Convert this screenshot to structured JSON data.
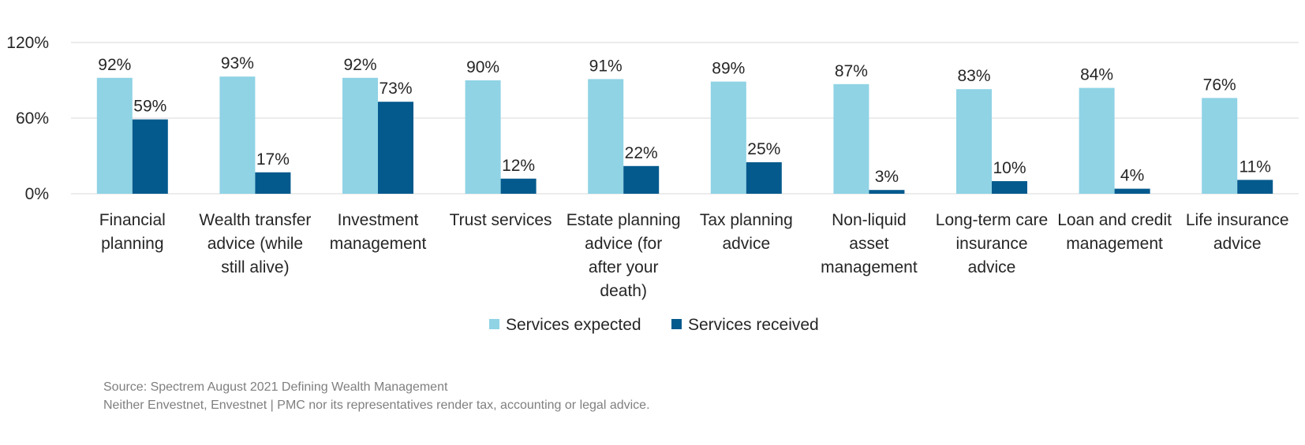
{
  "chart_data": {
    "type": "bar",
    "categories": [
      [
        "Financial",
        "planning"
      ],
      [
        "Wealth transfer",
        "advice (while",
        "still alive)"
      ],
      [
        "Investment",
        "management"
      ],
      [
        "Trust services"
      ],
      [
        "Estate planning",
        "advice (for",
        "after your",
        "death)"
      ],
      [
        "Tax planning",
        "advice"
      ],
      [
        "Non-liquid",
        "asset",
        "management"
      ],
      [
        "Long-term care",
        "insurance",
        "advice"
      ],
      [
        "Loan and credit",
        "management"
      ],
      [
        "Life insurance",
        "advice"
      ]
    ],
    "series": [
      {
        "name": "Services expected",
        "color": "#8fd3e5",
        "values": [
          92,
          93,
          92,
          90,
          91,
          89,
          87,
          83,
          84,
          76
        ]
      },
      {
        "name": "Services received",
        "color": "#045a8d",
        "values": [
          59,
          17,
          73,
          12,
          22,
          25,
          3,
          10,
          4,
          11
        ]
      }
    ],
    "value_suffix": "%",
    "yticks": [
      "0%",
      "60%",
      "120%"
    ],
    "ylim": [
      0,
      120
    ],
    "grid": true,
    "legend_position": "bottom-center"
  },
  "footnotes": {
    "source": "Source: Spectrem August 2021 Defining Wealth Management",
    "disclaimer": "Neither Envestnet, Envestnet | PMC nor its representatives render tax, accounting or legal advice."
  }
}
